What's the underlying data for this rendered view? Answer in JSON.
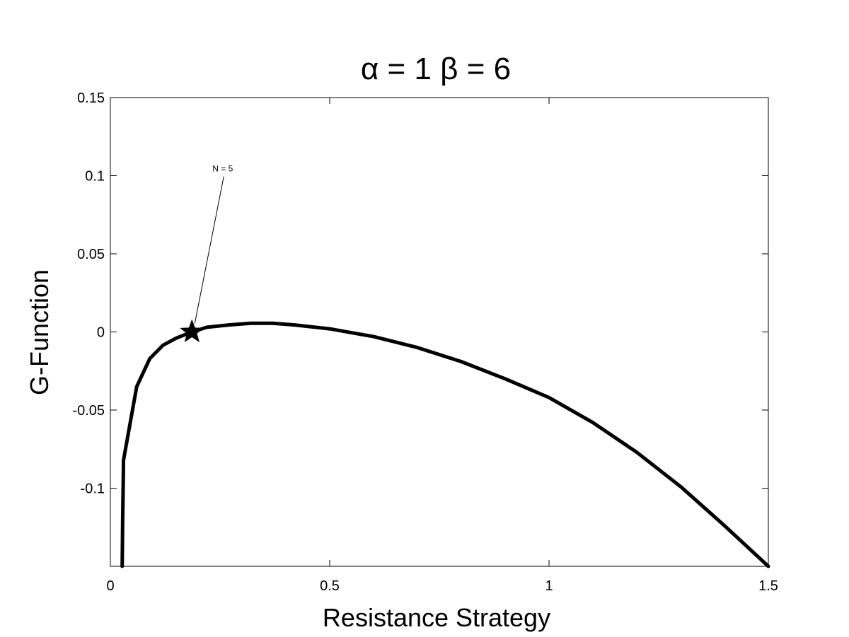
{
  "chart_data": {
    "type": "line",
    "title": "α = 1 β = 6",
    "xlabel": "Resistance Strategy",
    "ylabel": "G-Function",
    "xlim": [
      0,
      1.5
    ],
    "ylim": [
      -0.15,
      0.15
    ],
    "xticks": [
      0,
      0.5,
      1,
      1.5
    ],
    "xtick_labels": [
      "0",
      "0.5",
      "1",
      "1.5"
    ],
    "yticks": [
      0.15,
      0.1,
      0.05,
      0,
      -0.05,
      -0.1
    ],
    "ytick_labels": [
      "0.15",
      "0.1",
      "0.05",
      "0",
      "-0.05",
      "-0.1"
    ],
    "grid": false,
    "legend": "none",
    "line_color": "#000000",
    "series": [
      {
        "x": [
          0.027,
          0.028,
          0.03,
          0.06,
          0.09,
          0.12,
          0.15,
          0.186,
          0.22,
          0.27,
          0.32,
          0.37,
          0.42,
          0.5,
          0.6,
          0.7,
          0.8,
          0.9,
          1.0,
          1.1,
          1.2,
          1.3,
          1.4,
          1.5
        ],
        "y": [
          -0.15,
          -0.12,
          -0.082,
          -0.035,
          -0.017,
          -0.0085,
          -0.004,
          0.0,
          0.003,
          0.0045,
          0.0055,
          0.0055,
          0.0045,
          0.002,
          -0.003,
          -0.01,
          -0.019,
          -0.03,
          -0.042,
          -0.058,
          -0.077,
          -0.099,
          -0.124,
          -0.15
        ]
      }
    ],
    "marker": {
      "x": 0.186,
      "y": 0.0,
      "shape": "star"
    },
    "annotations": [
      {
        "text": "N = 5",
        "text_x": 0.265,
        "text_y": 0.1,
        "arrow_to_x": 0.186,
        "arrow_to_y": 0.0
      }
    ]
  }
}
